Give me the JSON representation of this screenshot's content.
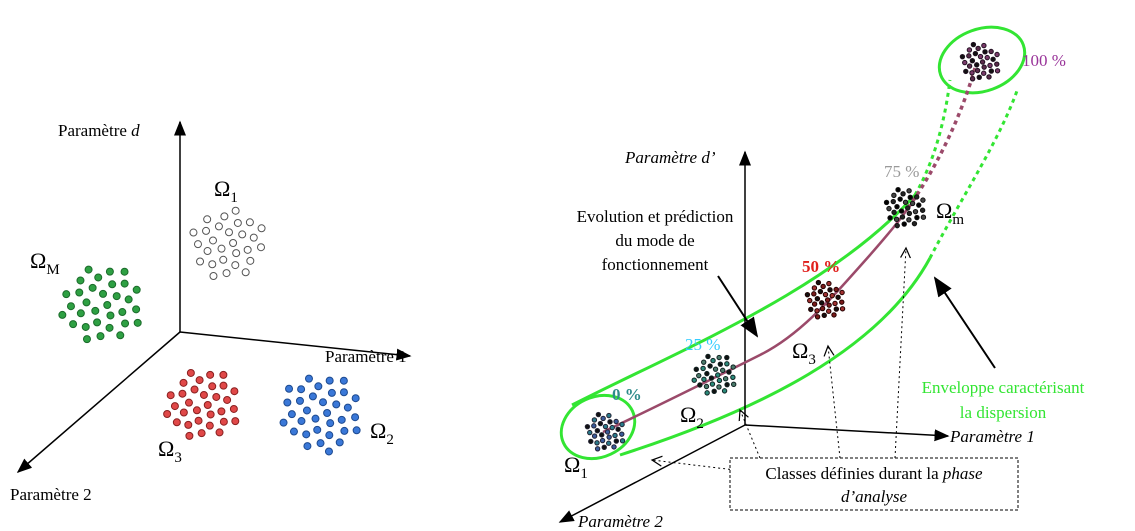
{
  "left": {
    "axis_d": {
      "text": "Paramètre ",
      "var": "d"
    },
    "axis_1": "Paramètre 1",
    "axis_2": "Paramètre 2",
    "class_white": {
      "symbol": "Ω",
      "sub": "1"
    },
    "class_green": {
      "symbol": "Ω",
      "sub": "M"
    },
    "class_red": {
      "symbol": "Ω",
      "sub": "3"
    },
    "class_blue": {
      "symbol": "Ω",
      "sub": "2"
    }
  },
  "right": {
    "axis_d": "Paramètre d’",
    "axis_1": "Paramètre 1",
    "axis_2": "Paramètre 2",
    "evolution": [
      "Evolution et prédiction",
      "du mode de",
      "fonctionnement"
    ],
    "percents": [
      "0 %",
      "25 %",
      "50 %",
      "75 %",
      "100 %"
    ],
    "classes": [
      {
        "symbol": "Ω",
        "sub": "1"
      },
      {
        "symbol": "Ω",
        "sub": "2"
      },
      {
        "symbol": "Ω",
        "sub": "3"
      },
      {
        "symbol": "Ω",
        "sub": "m"
      }
    ],
    "envelope": [
      "Enveloppe caractérisant",
      "la dispersion"
    ],
    "box": {
      "line1": "Classes définies durant la ",
      "line1_italic": "phase",
      "line2": "d’analyse"
    }
  }
}
